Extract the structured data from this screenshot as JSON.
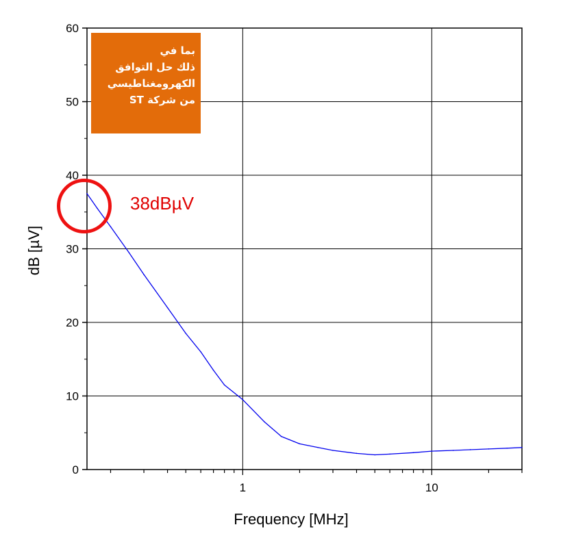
{
  "chart_data": {
    "type": "line",
    "title": "",
    "xlabel": "Frequency [MHz]",
    "ylabel": "dB [µV]",
    "x_scale": "log",
    "xlim": [
      0.15,
      30
    ],
    "ylim": [
      0,
      60
    ],
    "x_ticks": [
      1,
      10
    ],
    "x_tick_labels": [
      "1",
      "10"
    ],
    "y_ticks": [
      0,
      10,
      20,
      30,
      40,
      50,
      60
    ],
    "y_tick_labels": [
      "0",
      "10",
      "20",
      "30",
      "40",
      "50",
      "60"
    ],
    "grid": true,
    "series": [
      {
        "color": "#0000ee",
        "x": [
          0.15,
          0.17,
          0.2,
          0.25,
          0.3,
          0.4,
          0.5,
          0.6,
          0.7,
          0.8,
          1.0,
          1.3,
          1.6,
          2.0,
          2.5,
          3.0,
          4.0,
          5.0,
          6.0,
          8.0,
          10.0,
          13.0,
          16.0,
          20.0,
          25.0,
          30.0
        ],
        "y": [
          37.5,
          35.5,
          33.0,
          29.5,
          26.5,
          22.0,
          18.5,
          16.0,
          13.5,
          11.5,
          9.5,
          6.5,
          4.5,
          3.5,
          3.0,
          2.6,
          2.2,
          2.0,
          2.1,
          2.3,
          2.5,
          2.6,
          2.7,
          2.8,
          2.9,
          3.0
        ]
      }
    ],
    "annotations": [
      {
        "text": "38dBµV",
        "color": "#e00000"
      }
    ]
  },
  "note": {
    "text": "بما في\nذلك حل التوافق\nالكهرومغناطيسي\nمن شركة ST",
    "background": "#e36c0a",
    "color": "#ffffff"
  },
  "callout": {
    "label": "38dBµV",
    "color": "#e00000"
  }
}
